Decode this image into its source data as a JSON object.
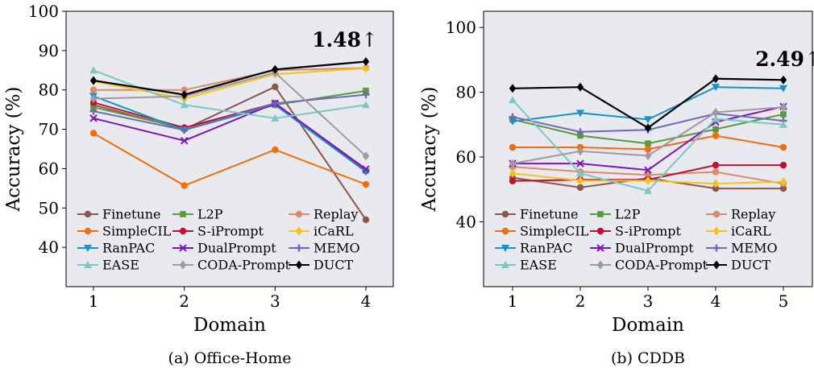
{
  "chart_data": [
    {
      "type": "line",
      "caption": "(a) Office-Home",
      "xlabel": "Domain",
      "ylabel": "Accuracy (%)",
      "x": [
        1,
        2,
        3,
        4
      ],
      "ylim": [
        30,
        100
      ],
      "yticks": [
        40,
        50,
        60,
        70,
        80,
        90,
        100
      ],
      "grid": false,
      "annotation": {
        "text": "1.48",
        "arrow": "↑",
        "x": 4,
        "y": 93
      },
      "series": [
        {
          "name": "Finetune",
          "color": "#8c564b",
          "marker": "circle",
          "values": [
            76.2,
            70.0,
            80.8,
            47.0
          ]
        },
        {
          "name": "L2P",
          "color": "#5a9a3a",
          "marker": "square",
          "values": [
            75.6,
            70.2,
            76.2,
            79.8
          ]
        },
        {
          "name": "Replay",
          "color": "#d88c6c",
          "marker": "circle",
          "values": [
            80.0,
            80.0,
            85.0,
            85.6
          ]
        },
        {
          "name": "SimpleCIL",
          "color": "#f36d0a",
          "marker": "circle",
          "values": [
            69.0,
            55.7,
            64.8,
            56.0
          ]
        },
        {
          "name": "S-iPrompt",
          "color": "#c0122f",
          "marker": "circle",
          "values": [
            76.8,
            70.4,
            76.6,
            59.4
          ]
        },
        {
          "name": "iCaRL",
          "color": "#f7c21a",
          "marker": "diamond",
          "values": [
            82.2,
            77.8,
            84.0,
            85.5
          ]
        },
        {
          "name": "RanPAC",
          "color": "#1694c8",
          "marker": "triangle-down",
          "values": [
            78.4,
            69.8,
            76.2,
            59.2
          ]
        },
        {
          "name": "DualPrompt",
          "color": "#7d17b8",
          "marker": "x",
          "values": [
            72.8,
            67.1,
            76.6,
            59.9
          ]
        },
        {
          "name": "MEMO",
          "color": "#7268b8",
          "marker": "plus",
          "values": [
            74.6,
            69.8,
            76.6,
            78.8
          ]
        },
        {
          "name": "EASE",
          "color": "#7ec7c3",
          "marker": "triangle-up",
          "values": [
            85.0,
            76.2,
            72.8,
            76.2
          ]
        },
        {
          "name": "CODA-Prompt",
          "color": "#9e9aa0",
          "marker": "diamond",
          "values": [
            77.8,
            78.4,
            84.4,
            63.2
          ]
        },
        {
          "name": "DUCT",
          "color": "#000000",
          "marker": "diamond",
          "values": [
            82.4,
            78.8,
            85.2,
            87.2
          ]
        }
      ]
    },
    {
      "type": "line",
      "caption": "(b) CDDB",
      "xlabel": "Domain",
      "ylabel": "Accuracy (%)",
      "x": [
        1,
        2,
        3,
        4,
        5
      ],
      "ylim": [
        20,
        105
      ],
      "yticks": [
        40,
        60,
        80,
        100
      ],
      "grid": false,
      "annotation": {
        "text": "2.49",
        "arrow": "↑",
        "x": 5,
        "y": 90
      },
      "series": [
        {
          "name": "Finetune",
          "color": "#8c564b",
          "marker": "circle",
          "values": [
            53.6,
            50.6,
            53.5,
            50.3,
            50.3
          ]
        },
        {
          "name": "L2P",
          "color": "#5a9a3a",
          "marker": "square",
          "values": [
            71.6,
            66.6,
            64.2,
            68.6,
            73.2
          ]
        },
        {
          "name": "Replay",
          "color": "#d88c6c",
          "marker": "circle",
          "values": [
            57.0,
            55.5,
            54.5,
            55.4,
            51.8
          ]
        },
        {
          "name": "SimpleCIL",
          "color": "#f36d0a",
          "marker": "circle",
          "values": [
            63.0,
            63.0,
            62.4,
            66.6,
            63.0
          ]
        },
        {
          "name": "S-iPrompt",
          "color": "#c0122f",
          "marker": "circle",
          "values": [
            52.6,
            53.0,
            53.0,
            57.5,
            57.5
          ]
        },
        {
          "name": "iCaRL",
          "color": "#f7c21a",
          "marker": "diamond",
          "values": [
            55.0,
            52.7,
            52.7,
            51.8,
            52.4
          ]
        },
        {
          "name": "RanPAC",
          "color": "#1694c8",
          "marker": "triangle-down",
          "values": [
            71.0,
            73.6,
            71.6,
            81.6,
            81.2
          ]
        },
        {
          "name": "DualPrompt",
          "color": "#7d17b8",
          "marker": "x",
          "values": [
            58.0,
            58.0,
            56.0,
            70.8,
            75.6
          ]
        },
        {
          "name": "MEMO",
          "color": "#7268b8",
          "marker": "plus",
          "values": [
            72.4,
            67.8,
            68.4,
            73.4,
            71.2
          ]
        },
        {
          "name": "EASE",
          "color": "#7ec7c3",
          "marker": "triangle-up",
          "values": [
            77.6,
            55.0,
            49.6,
            71.8,
            70.0
          ]
        },
        {
          "name": "CODA-Prompt",
          "color": "#9e9aa0",
          "marker": "diamond",
          "values": [
            58.0,
            61.8,
            60.4,
            73.8,
            75.4
          ]
        },
        {
          "name": "DUCT",
          "color": "#000000",
          "marker": "diamond",
          "values": [
            81.2,
            81.6,
            69.0,
            84.2,
            83.8
          ]
        }
      ]
    }
  ]
}
